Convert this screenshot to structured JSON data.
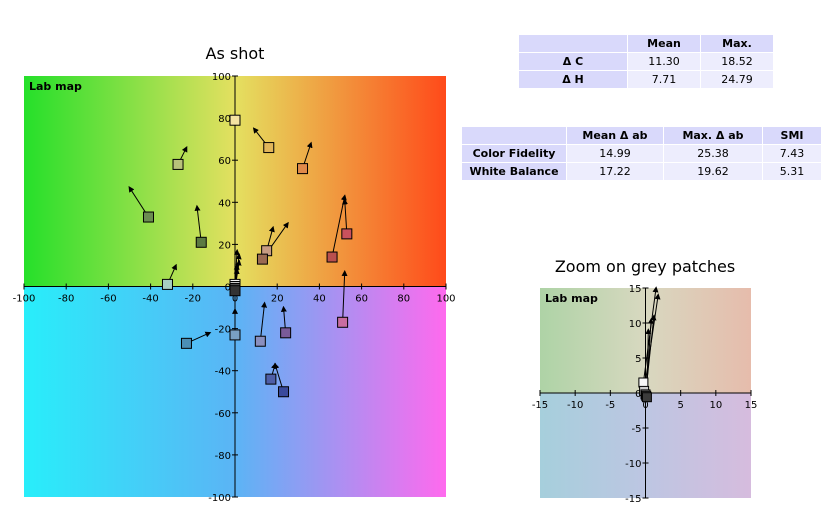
{
  "titles": {
    "main": "As shot",
    "zoom": "Zoom on grey patches"
  },
  "table_delta": {
    "headers": [
      "",
      "Mean",
      "Max."
    ],
    "rows": [
      {
        "label": "Δ C",
        "mean": "11.30",
        "max": "18.52"
      },
      {
        "label": "Δ H",
        "mean": "7.71",
        "max": "24.79"
      }
    ]
  },
  "table_fidelity": {
    "headers": [
      "",
      "Mean Δ ab",
      "Max. Δ ab",
      "SMI"
    ],
    "rows": [
      {
        "label": "Color Fidelity",
        "mean": "14.99",
        "max": "25.38",
        "smi": "7.43"
      },
      {
        "label": "White Balance",
        "mean": "17.22",
        "max": "19.62",
        "smi": "5.31"
      }
    ]
  },
  "chart_data": [
    {
      "type": "scatter",
      "title": "As shot",
      "plot_label": "Lab map",
      "xlim": [
        -100,
        100
      ],
      "ylim": [
        -100,
        100
      ],
      "xticks": [
        -100,
        -80,
        -60,
        -40,
        -20,
        0,
        20,
        40,
        60,
        80,
        100
      ],
      "yticks": [
        -100,
        -80,
        -60,
        -40,
        -20,
        0,
        20,
        40,
        60,
        80,
        100
      ],
      "grid": false,
      "background": "Lab color map",
      "patches": [
        {
          "a": 0,
          "b": 79,
          "ref": [
            0,
            79
          ],
          "color": "#f4e3a2"
        },
        {
          "a": 16,
          "b": 66,
          "ref": [
            9,
            75
          ],
          "color": "#e1b65a"
        },
        {
          "a": 32,
          "b": 56,
          "ref": [
            36,
            68
          ],
          "color": "#e08a4a"
        },
        {
          "a": -27,
          "b": 58,
          "ref": [
            -23,
            66
          ],
          "color": "#b8c27a"
        },
        {
          "a": -41,
          "b": 33,
          "ref": [
            -50,
            47
          ],
          "color": "#6b8d51"
        },
        {
          "a": -16,
          "b": 21,
          "ref": [
            -18,
            38
          ],
          "color": "#5c7a42"
        },
        {
          "a": 15,
          "b": 17,
          "ref": [
            18,
            28
          ],
          "color": "#c79b82"
        },
        {
          "a": 13,
          "b": 13,
          "ref": [
            25,
            30
          ],
          "color": "#9b6a52"
        },
        {
          "a": 53,
          "b": 25,
          "ref": [
            52,
            41
          ],
          "color": "#c9515d"
        },
        {
          "a": 46,
          "b": 14,
          "ref": [
            52,
            43
          ],
          "color": "#b9504e"
        },
        {
          "a": 51,
          "b": -17,
          "ref": [
            52,
            7
          ],
          "color": "#c86da0"
        },
        {
          "a": -32,
          "b": 1,
          "ref": [
            -28,
            10
          ],
          "color": "#a6cfc2"
        },
        {
          "a": -23,
          "b": -27,
          "ref": [
            -12,
            -22
          ],
          "color": "#4b8fb5"
        },
        {
          "a": 0,
          "b": -23,
          "ref": [
            0,
            -11
          ],
          "color": "#7aa0c2"
        },
        {
          "a": 12,
          "b": -26,
          "ref": [
            14,
            -8
          ],
          "color": "#8a8fbf"
        },
        {
          "a": 24,
          "b": -22,
          "ref": [
            23,
            -10
          ],
          "color": "#7a5b99"
        },
        {
          "a": 17,
          "b": -44,
          "ref": [
            19,
            -37
          ],
          "color": "#4f5fa8"
        },
        {
          "a": 23,
          "b": -50,
          "ref": [
            19,
            -37
          ],
          "color": "#3a4a9c"
        },
        {
          "a": 0,
          "b": 1,
          "ref": [
            1,
            17
          ],
          "color": "#f5f5f5"
        },
        {
          "a": 0,
          "b": 0,
          "ref": [
            2,
            15
          ],
          "color": "#c8c8c8"
        },
        {
          "a": 0,
          "b": -1,
          "ref": [
            2,
            12
          ],
          "color": "#8a8a8a"
        },
        {
          "a": 0,
          "b": -1,
          "ref": [
            1,
            10
          ],
          "color": "#555555"
        },
        {
          "a": 0,
          "b": -2,
          "ref": [
            1,
            8
          ],
          "color": "#333333"
        }
      ]
    },
    {
      "type": "scatter",
      "title": "Zoom on grey patches",
      "plot_label": "Lab map",
      "xlim": [
        -15,
        15
      ],
      "ylim": [
        -15,
        15
      ],
      "xticks": [
        -15,
        -10,
        -5,
        0,
        5,
        10,
        15
      ],
      "yticks": [
        -15,
        -10,
        -5,
        0,
        5,
        10,
        15
      ],
      "grid": false,
      "background": "Lab color map",
      "patches": [
        {
          "a": -0.3,
          "b": 1.5,
          "ref": [
            1.5,
            15
          ],
          "color": "#f7f7f7"
        },
        {
          "a": -0.2,
          "b": 0.3,
          "ref": [
            1.8,
            14
          ],
          "color": "#cccccc"
        },
        {
          "a": 0.0,
          "b": -0.2,
          "ref": [
            1.2,
            11
          ],
          "color": "#999999"
        },
        {
          "a": 0.1,
          "b": -0.4,
          "ref": [
            0.8,
            10.5
          ],
          "color": "#666666"
        },
        {
          "a": 0.2,
          "b": -0.6,
          "ref": [
            0.4,
            9
          ],
          "color": "#3b3b3b"
        }
      ]
    }
  ]
}
